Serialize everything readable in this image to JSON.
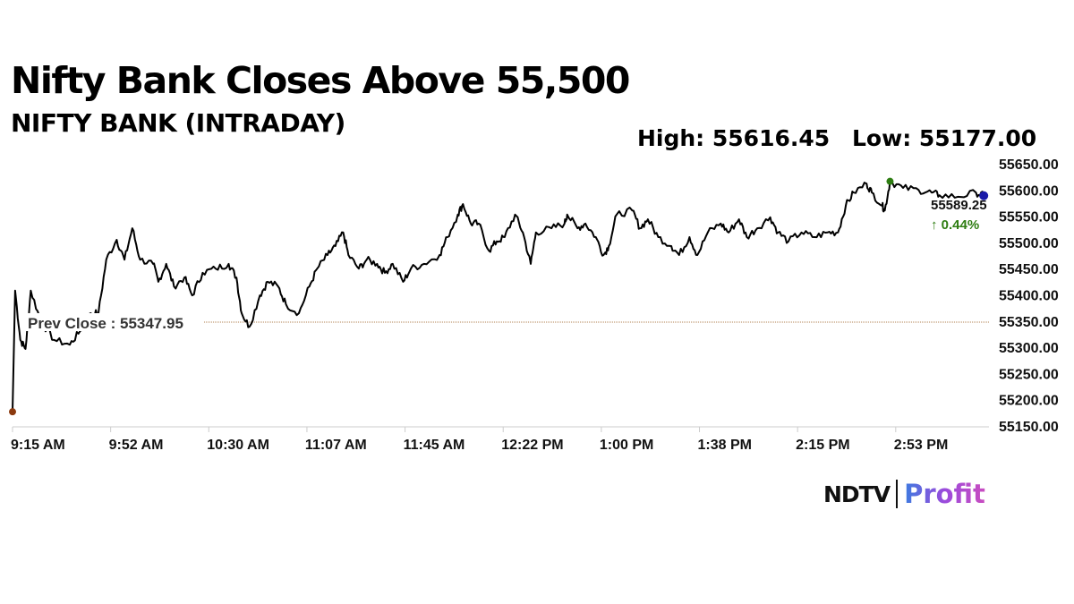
{
  "chart_data": {
    "type": "line",
    "title": "Nifty Bank Closes Above 55,500",
    "subtitle": "NIFTY BANK (INTRADAY)",
    "high_label": "High: 55616.45",
    "low_label": "Low: 55177.00",
    "high": 55616.45,
    "low": 55177.0,
    "last_value_label": "55589.25",
    "change_label": "↑ 0.44%",
    "prev_close": 55347.95,
    "prev_close_label": "Prev Close : 55347.95",
    "xlabel": "",
    "ylabel": "",
    "ylim": [
      55150,
      55650
    ],
    "x_range_minutes": [
      0,
      375
    ],
    "y_ticks": [
      "55650.00",
      "55600.00",
      "55550.00",
      "55500.00",
      "55450.00",
      "55400.00",
      "55350.00",
      "55300.00",
      "55250.00",
      "55200.00",
      "55150.00"
    ],
    "x_ticks": [
      "9:15 AM",
      "9:52 AM",
      "10:30 AM",
      "11:07 AM",
      "11:45 AM",
      "12:22 PM",
      "1:00 PM",
      "1:38 PM",
      "2:15 PM",
      "2:53 PM"
    ],
    "grid": false,
    "points_minutes_from_open": [
      0,
      1,
      3,
      5,
      7,
      11,
      16,
      22,
      26,
      30,
      33,
      36,
      40,
      43,
      46,
      49,
      54,
      56,
      59,
      62,
      66,
      69,
      73,
      78,
      83,
      86,
      88,
      91,
      95,
      98,
      102,
      105,
      110,
      114,
      117,
      121,
      124,
      127,
      129,
      133,
      136,
      140,
      143,
      146,
      150,
      153,
      158,
      164,
      167,
      171,
      173,
      176,
      179,
      183,
      186,
      189,
      193,
      196,
      199,
      201,
      207,
      212,
      213,
      217,
      220,
      224,
      227,
      229,
      232,
      238,
      241,
      244,
      248,
      253,
      256,
      260,
      263,
      267,
      272,
      275,
      279,
      282,
      286,
      291,
      294,
      298,
      303,
      308,
      313,
      317,
      320,
      323,
      328,
      330,
      334,
      335,
      337,
      342,
      348,
      353,
      356,
      363,
      370,
      373
    ],
    "values": [
      55177,
      55408,
      55314,
      55297,
      55408,
      55348,
      55314,
      55305,
      55331,
      55365,
      55365,
      55467,
      55505,
      55467,
      55527,
      55467,
      55459,
      55425,
      55459,
      55416,
      55433,
      55399,
      55442,
      55450,
      55459,
      55433,
      55365,
      55339,
      55399,
      55425,
      55416,
      55382,
      55365,
      55416,
      55450,
      55476,
      55493,
      55519,
      55476,
      55450,
      55467,
      55459,
      55442,
      55459,
      55425,
      55450,
      55459,
      55476,
      55510,
      55553,
      55573,
      55536,
      55536,
      55484,
      55502,
      55510,
      55553,
      55519,
      55459,
      55519,
      55527,
      55536,
      55553,
      55527,
      55536,
      55510,
      55476,
      55493,
      55553,
      55561,
      55527,
      55544,
      55510,
      55493,
      55476,
      55510,
      55476,
      55519,
      55536,
      55519,
      55544,
      55510,
      55527,
      55548,
      55519,
      55502,
      55519,
      55510,
      55519,
      55519,
      55570,
      55595,
      55612,
      55595,
      55570,
      55561,
      55616,
      55604,
      55600,
      55595,
      55590,
      55587,
      55595,
      55589
    ],
    "colors": {
      "line": "#000000",
      "high_dot": "#2e7d12",
      "low_dot": "#8b3a0f",
      "last_dot": "#1a1aa8",
      "prev_close_line": "#b08050",
      "change": "#2e7d12"
    }
  },
  "logo": {
    "left": "NDTV",
    "right": "Profit"
  }
}
